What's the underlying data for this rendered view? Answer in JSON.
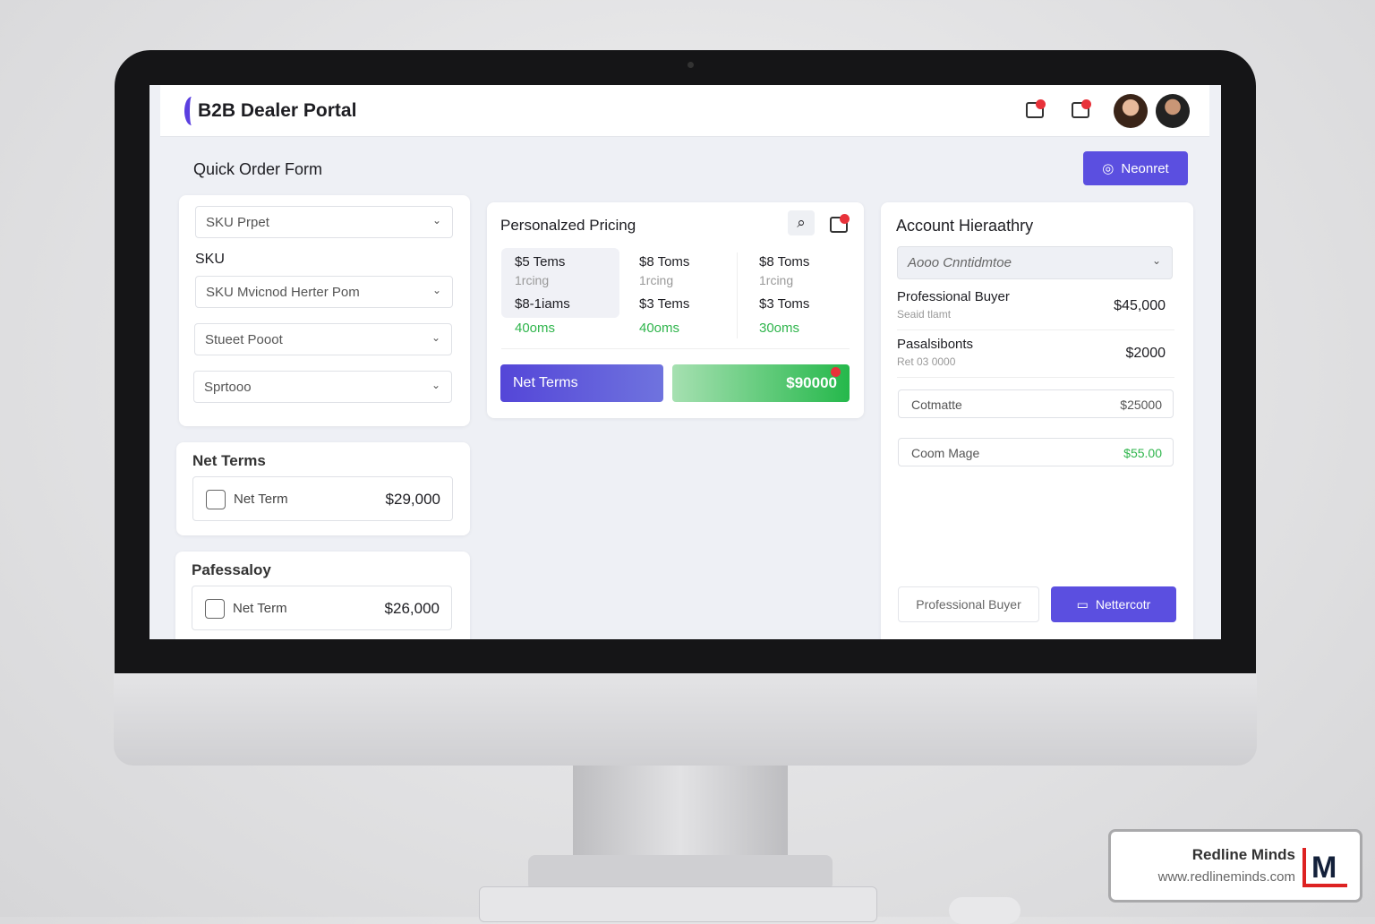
{
  "app": {
    "title": "B2B Dealer Portal"
  },
  "header": {
    "icons": [
      "export-icon",
      "inbox-icon"
    ],
    "avatars": [
      "avatar-woman",
      "avatar-man"
    ]
  },
  "quick_order": {
    "title": "Quick Order Form",
    "action_button": "Neonret",
    "selects": [
      "SKU Prpet",
      "SKU Mvicnod Herter Pom",
      "Stueet Pooot",
      "Sprtooo"
    ],
    "sku_label": "SKU"
  },
  "net_terms_card": {
    "title": "Net Terms",
    "row_label": "Net Term",
    "row_value": "$29,000"
  },
  "prof_card": {
    "title": "Pafessaloy",
    "row_label": "Net Term",
    "row_value": "$26,000"
  },
  "pricing": {
    "title": "Personalzed Pricing",
    "columns": [
      {
        "line1": "$5 Tems",
        "line2": "1rcing",
        "line3": "$8-1iams",
        "line4": "40oms"
      },
      {
        "line1": "$8 Toms",
        "line2": "1rcing",
        "line3": "$3 Tems",
        "line4": "40oms"
      },
      {
        "line1": "$8 Toms",
        "line2": "1rcing",
        "line3": "$3 Toms",
        "line4": "30oms"
      }
    ],
    "net_terms_button": "Net Terms",
    "total_button": "$90000"
  },
  "account": {
    "title": "Account Hieraathry",
    "select": "Aooo Cnntidmtoe",
    "rows": [
      {
        "name": "Professional Buyer",
        "sub": "Seaid tlamt",
        "value": "$45,000"
      },
      {
        "name": "Pasalsibonts",
        "sub": "Ret 03 0000",
        "value": "$2000"
      }
    ],
    "fields": [
      {
        "label": "Cotmatte",
        "value": "$25000"
      },
      {
        "label": "Coom Mage",
        "value": "$55.00"
      }
    ],
    "secondary_button": "Professional Buyer",
    "primary_button": "Nettercotr"
  },
  "watermark": {
    "name": "Redline Minds",
    "url": "www.redlineminds.com",
    "logo": "RM"
  },
  "colors": {
    "accent": "#5b4fe0",
    "green": "#2fb54c",
    "badge": "#e8323a"
  }
}
